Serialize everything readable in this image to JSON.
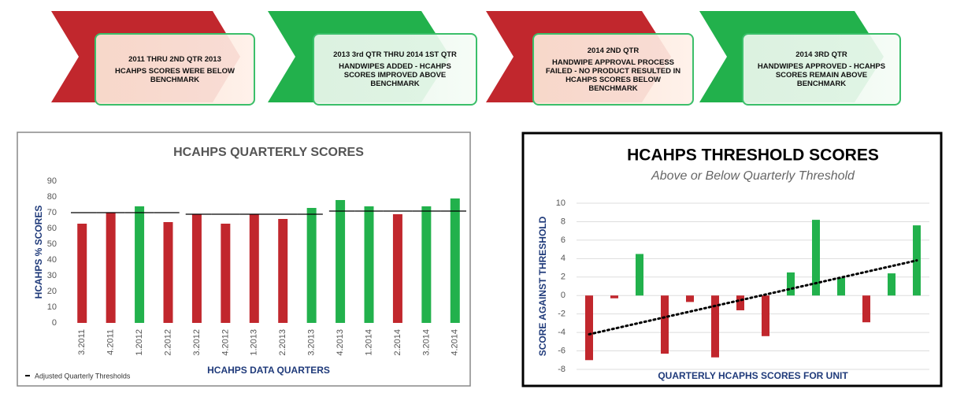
{
  "banner": [
    {
      "heading": "2011 THRU 2ND QTR 2013",
      "text": "HCAHPS SCORES WERE BELOW BENCHMARK"
    },
    {
      "heading": "2013 3rd QTR THRU 2014 1ST QTR",
      "text": "HANDWIPES ADDED - HCAHPS SCORES IMPROVED ABOVE BENCHMARK"
    },
    {
      "heading": "2014 2ND QTR",
      "text": "HANDWIPE APPROVAL PROCESS FAILED - NO PRODUCT RESULTED IN HCAHPS SCORES BELOW BENCHMARK"
    },
    {
      "heading": "2014 3RD QTR",
      "text": "HANDWIPES APPROVED - HCAHPS SCORES REMAIN ABOVE BENCHMARK"
    }
  ],
  "chart_data": [
    {
      "type": "bar",
      "title": "HCAHPS QUARTERLY SCORES",
      "x_label": "HCAHPS DATA QUARTERS",
      "y_label": "HCAHPS % SCORES",
      "categories": [
        "3.2011",
        "4.2011",
        "1.2012",
        "2.2012",
        "3.2012",
        "4.2012",
        "1.2013",
        "2.2013",
        "3.2013",
        "4.2013",
        "1.2014",
        "2.2014",
        "3.2014",
        "4.2014"
      ],
      "values": [
        63,
        70,
        74,
        64,
        69,
        63,
        69,
        66,
        73,
        78,
        74,
        69,
        74,
        79
      ],
      "colors": [
        "#c1272d",
        "#c1272d",
        "#22b14c",
        "#c1272d",
        "#c1272d",
        "#c1272d",
        "#c1272d",
        "#c1272d",
        "#22b14c",
        "#22b14c",
        "#22b14c",
        "#c1272d",
        "#22b14c",
        "#22b14c"
      ],
      "thresholds": {
        "name": "Adjusted Quarterly Thresholds",
        "color": "#000000",
        "values": [
          70,
          70,
          70,
          70,
          69,
          69,
          69,
          69,
          69,
          71,
          71,
          71,
          71,
          71
        ]
      },
      "ylim": [
        0,
        90
      ],
      "yticks": [
        0,
        10,
        20,
        30,
        40,
        50,
        60,
        70,
        80,
        90
      ],
      "grid": false
    },
    {
      "type": "bar",
      "title": "HCAHPS THRESHOLD SCORES",
      "subtitle": "Above or Below Quarterly Threshold",
      "x_label": "QUARTERLY HCAPHS SCORES FOR UNIT",
      "y_label": "SCORE AGAINST THRESHOLD",
      "values": [
        -7,
        -0.3,
        4.5,
        -6.3,
        -0.7,
        -6.7,
        -1.6,
        -4.4,
        2.5,
        8.2,
        1.9,
        -2.9,
        2.4,
        7.6
      ],
      "colors": [
        "#c1272d",
        "#c1272d",
        "#22b14c",
        "#c1272d",
        "#c1272d",
        "#c1272d",
        "#c1272d",
        "#c1272d",
        "#22b14c",
        "#22b14c",
        "#22b14c",
        "#c1272d",
        "#22b14c",
        "#22b14c"
      ],
      "trendline": [
        -4.2,
        3.8
      ],
      "ylim": [
        -8,
        10
      ],
      "yticks": [
        -8,
        -6,
        -4,
        -2,
        0,
        2,
        4,
        6,
        8,
        10
      ],
      "grid": true
    }
  ]
}
